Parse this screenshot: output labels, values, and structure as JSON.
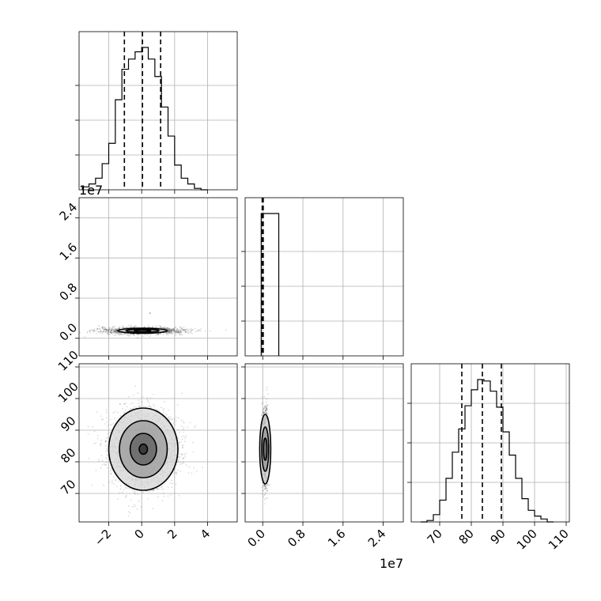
{
  "figure": {
    "background": "#ffffff",
    "grid_color": "#b0b0b0",
    "line_color": "#000000",
    "sample_color": "#000000",
    "density_fill": [
      "#ffffff",
      "#d6d6d6",
      "#9b9b9b",
      "#5e5e5e",
      "#2a2a2a"
    ]
  },
  "chart_data": [
    {
      "id": "hist-a",
      "type": "bar",
      "panel": "row1-col1",
      "parameter_index": 0,
      "xlim": [
        -3.8,
        5.8
      ],
      "ylim": [
        0,
        1.0
      ],
      "xticks": [
        -2,
        0,
        2,
        4
      ],
      "x_tick_labels": [],
      "y_tick_labels": [],
      "grid": true,
      "bin_edges": [
        -3.6,
        -3.2,
        -2.8,
        -2.4,
        -2.0,
        -1.6,
        -1.2,
        -0.8,
        -0.4,
        0.0,
        0.4,
        0.8,
        1.2,
        1.6,
        2.0,
        2.4,
        2.8,
        3.2,
        3.6,
        4.0
      ],
      "counts": [
        0.02,
        0.04,
        0.08,
        0.18,
        0.32,
        0.62,
        0.83,
        0.9,
        0.95,
        0.98,
        0.9,
        0.78,
        0.57,
        0.37,
        0.17,
        0.08,
        0.04,
        0.01,
        0.0
      ],
      "quantiles": [
        -1.05,
        0.05,
        1.15
      ]
    },
    {
      "id": "joint-ab",
      "type": "scatter",
      "panel": "row2-col1",
      "x_parameter": 0,
      "y_parameter": 1,
      "xlim": [
        -3.8,
        5.8
      ],
      "ylim": [
        -0.35,
        2.8
      ],
      "xticks": [
        -2,
        0,
        2,
        4
      ],
      "yticks": [
        0.0,
        0.8,
        1.6,
        2.4
      ],
      "x_tick_labels": [],
      "y_tick_labels": [
        "0.0",
        "0.8",
        "1.6",
        "2.4"
      ],
      "y_offset_label": "1e7",
      "grid": true,
      "density_center": [
        0.05,
        0.15
      ],
      "spread": [
        1.3,
        0.035
      ],
      "contour_levels": [
        {
          "rx": 1.5,
          "ry": 0.05
        },
        {
          "rx": 1.0,
          "ry": 0.032
        },
        {
          "rx": 0.5,
          "ry": 0.018
        }
      ],
      "outliers": [
        [
          0.5,
          0.5
        ],
        [
          0.1,
          -0.45
        ]
      ]
    },
    {
      "id": "hist-b",
      "type": "bar",
      "panel": "row2-col2",
      "parameter_index": 1,
      "xlim": [
        -0.35,
        2.8
      ],
      "ylim": [
        0,
        1.1
      ],
      "xticks": [
        0.0,
        0.8,
        1.6,
        2.4
      ],
      "x_tick_labels": [],
      "y_tick_labels": [],
      "grid": true,
      "bin_edges": [
        -0.03,
        0.04,
        0.32
      ],
      "counts": [
        1.0,
        1.0
      ],
      "quantiles": [
        -0.01,
        0.0,
        0.01
      ]
    },
    {
      "id": "joint-ac",
      "type": "scatter",
      "panel": "row3-col1",
      "x_parameter": 0,
      "y_parameter": 2,
      "xlim": [
        -3.8,
        5.8
      ],
      "ylim": [
        61,
        111
      ],
      "xticks": [
        -2,
        0,
        2,
        4
      ],
      "yticks": [
        70,
        80,
        90,
        100,
        110
      ],
      "x_tick_labels": [
        "−2",
        "0",
        "2",
        "4"
      ],
      "y_tick_labels": [
        "70",
        "80",
        "90",
        "100",
        "110"
      ],
      "grid": true,
      "density_center": [
        0.1,
        84
      ],
      "spread": [
        1.05,
        6.0
      ],
      "contour_levels": [
        {
          "rx": 2.1,
          "ry": 13.0
        },
        {
          "rx": 1.45,
          "ry": 9.0
        },
        {
          "rx": 0.8,
          "ry": 5.0
        },
        {
          "rx": 0.25,
          "ry": 1.6
        }
      ]
    },
    {
      "id": "joint-bc",
      "type": "scatter",
      "panel": "row3-col2",
      "x_parameter": 1,
      "y_parameter": 2,
      "xlim": [
        -0.35,
        2.8
      ],
      "ylim": [
        61,
        111
      ],
      "xticks": [
        0.0,
        0.8,
        1.6,
        2.4
      ],
      "yticks": [
        70,
        80,
        90,
        100,
        110
      ],
      "x_tick_labels": [
        "0.0",
        "0.8",
        "1.6",
        "2.4"
      ],
      "y_tick_labels": [],
      "x_offset_label": "1e7",
      "grid": true,
      "density_center": [
        0.05,
        84
      ],
      "spread": [
        0.03,
        6.0
      ],
      "contour_levels": [
        {
          "rx": 0.11,
          "ry": 11.0
        },
        {
          "rx": 0.07,
          "ry": 7.0
        },
        {
          "rx": 0.035,
          "ry": 3.5
        }
      ]
    },
    {
      "id": "hist-c",
      "type": "bar",
      "panel": "row3-col3",
      "parameter_index": 2,
      "xlim": [
        61,
        111
      ],
      "ylim": [
        0,
        1.0
      ],
      "xticks": [
        70,
        80,
        90,
        100,
        110
      ],
      "yticks": [
        0.25,
        0.5,
        0.75
      ],
      "x_tick_labels": [
        "70",
        "80",
        "90",
        "100",
        "110"
      ],
      "y_tick_labels": [],
      "grid": true,
      "bin_edges": [
        64,
        66,
        68,
        70,
        72,
        74,
        76,
        78,
        80,
        82,
        84,
        86,
        88,
        90,
        92,
        94,
        96,
        98,
        100,
        102,
        104,
        106
      ],
      "counts": [
        0.0,
        0.01,
        0.05,
        0.15,
        0.3,
        0.48,
        0.64,
        0.8,
        0.91,
        0.98,
        0.97,
        0.9,
        0.79,
        0.62,
        0.46,
        0.3,
        0.16,
        0.08,
        0.04,
        0.02,
        0.0
      ],
      "quantiles": [
        77.0,
        83.5,
        89.5
      ]
    }
  ]
}
